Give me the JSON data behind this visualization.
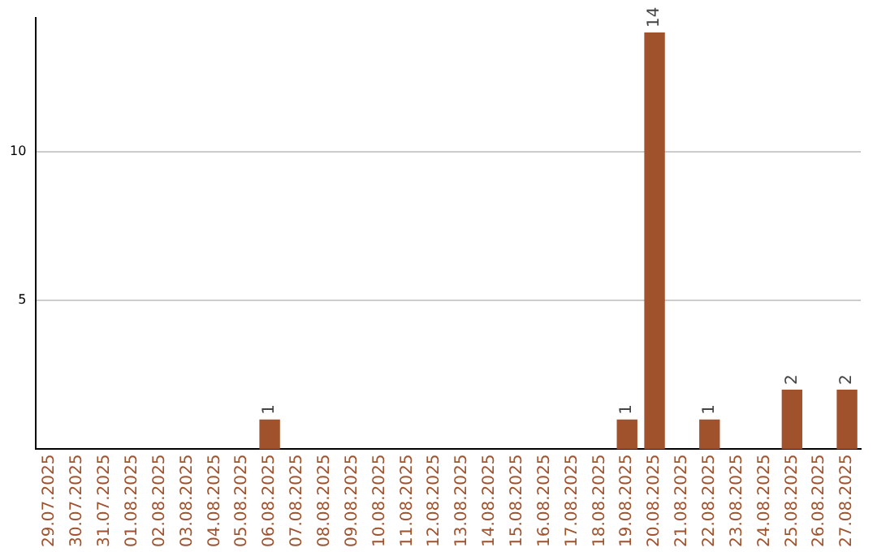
{
  "chart_data": {
    "type": "bar",
    "categories": [
      "29.07.2025",
      "30.07.2025",
      "31.07.2025",
      "01.08.2025",
      "02.08.2025",
      "03.08.2025",
      "04.08.2025",
      "05.08.2025",
      "06.08.2025",
      "07.08.2025",
      "08.08.2025",
      "09.08.2025",
      "10.08.2025",
      "11.08.2025",
      "12.08.2025",
      "13.08.2025",
      "14.08.2025",
      "15.08.2025",
      "16.08.2025",
      "17.08.2025",
      "18.08.2025",
      "19.08.2025",
      "20.08.2025",
      "21.08.2025",
      "22.08.2025",
      "23.08.2025",
      "24.08.2025",
      "25.08.2025",
      "26.08.2025",
      "27.08.2025"
    ],
    "values": [
      0,
      0,
      0,
      0,
      0,
      0,
      0,
      0,
      1,
      0,
      0,
      0,
      0,
      0,
      0,
      0,
      0,
      0,
      0,
      0,
      0,
      1,
      14,
      0,
      1,
      0,
      0,
      2,
      0,
      2
    ],
    "value_labels": [
      null,
      null,
      null,
      null,
      null,
      null,
      null,
      null,
      "1",
      null,
      null,
      null,
      null,
      null,
      null,
      null,
      null,
      null,
      null,
      null,
      null,
      "1",
      "14",
      null,
      "1",
      null,
      null,
      "2",
      null,
      "2"
    ],
    "color": "#a0522d",
    "ylim": [
      0,
      14.5
    ],
    "yticks": [
      5,
      10
    ],
    "grid": "y",
    "legend": false
  }
}
